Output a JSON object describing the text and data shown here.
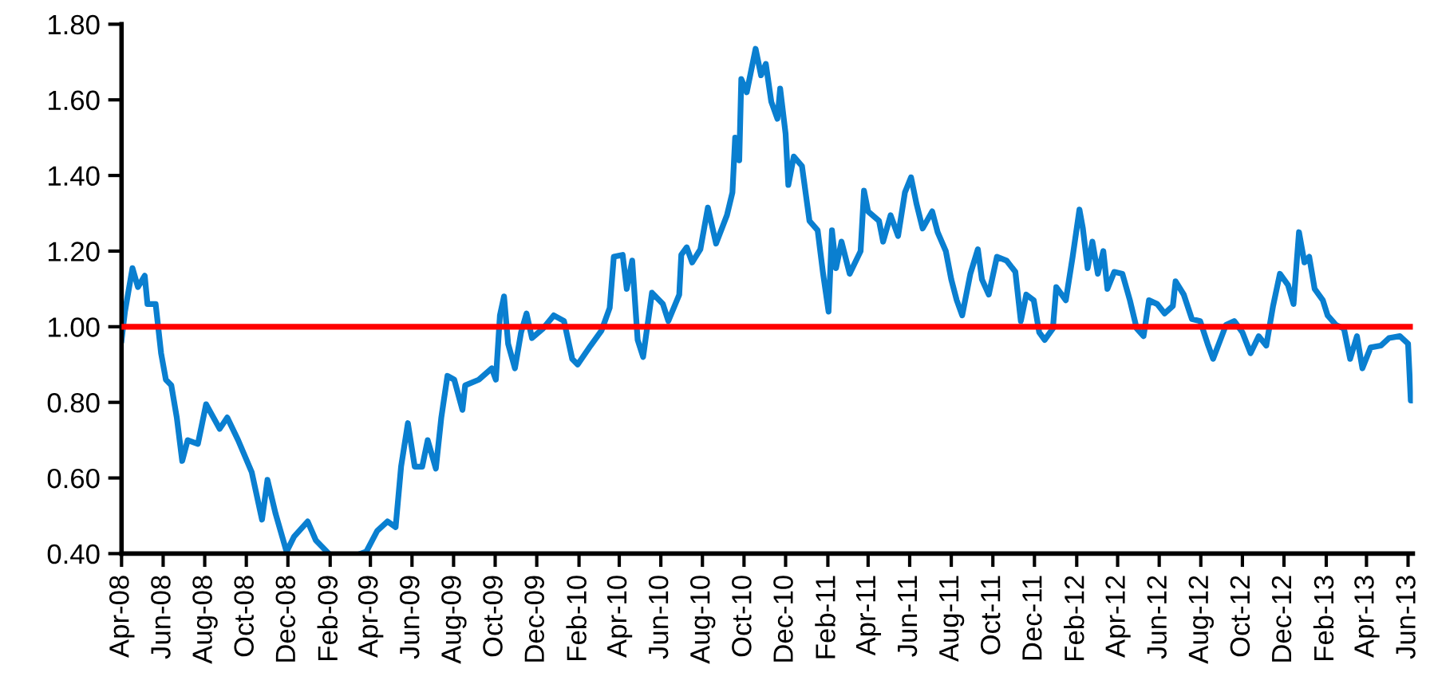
{
  "chart_data": {
    "type": "line",
    "xlim": [
      "2008-04-01",
      "2013-06-08"
    ],
    "ylim": [
      0.4,
      1.8
    ],
    "yticks": [
      {
        "value": 0.4,
        "label": "0.40"
      },
      {
        "value": 0.6,
        "label": "0.60"
      },
      {
        "value": 0.8,
        "label": "0.80"
      },
      {
        "value": 1.0,
        "label": "1.00"
      },
      {
        "value": 1.2,
        "label": "1.20"
      },
      {
        "value": 1.4,
        "label": "1.40"
      },
      {
        "value": 1.6,
        "label": "1.60"
      },
      {
        "value": 1.8,
        "label": "1.80"
      }
    ],
    "xticks": [
      {
        "value": "2008-04-01",
        "label": "Apr-08"
      },
      {
        "value": "2008-06-01",
        "label": "Jun-08"
      },
      {
        "value": "2008-08-01",
        "label": "Aug-08"
      },
      {
        "value": "2008-10-01",
        "label": "Oct-08"
      },
      {
        "value": "2008-12-01",
        "label": "Dec-08"
      },
      {
        "value": "2009-02-01",
        "label": "Feb-09"
      },
      {
        "value": "2009-04-01",
        "label": "Apr-09"
      },
      {
        "value": "2009-06-01",
        "label": "Jun-09"
      },
      {
        "value": "2009-08-01",
        "label": "Aug-09"
      },
      {
        "value": "2009-10-01",
        "label": "Oct-09"
      },
      {
        "value": "2009-12-01",
        "label": "Dec-09"
      },
      {
        "value": "2010-02-01",
        "label": "Feb-10"
      },
      {
        "value": "2010-04-01",
        "label": "Apr-10"
      },
      {
        "value": "2010-06-01",
        "label": "Jun-10"
      },
      {
        "value": "2010-08-01",
        "label": "Aug-10"
      },
      {
        "value": "2010-10-01",
        "label": "Oct-10"
      },
      {
        "value": "2010-12-01",
        "label": "Dec-10"
      },
      {
        "value": "2011-02-01",
        "label": "Feb-11"
      },
      {
        "value": "2011-04-01",
        "label": "Apr-11"
      },
      {
        "value": "2011-06-01",
        "label": "Jun-11"
      },
      {
        "value": "2011-08-01",
        "label": "Aug-11"
      },
      {
        "value": "2011-10-01",
        "label": "Oct-11"
      },
      {
        "value": "2011-12-01",
        "label": "Dec-11"
      },
      {
        "value": "2012-02-01",
        "label": "Feb-12"
      },
      {
        "value": "2012-04-01",
        "label": "Apr-12"
      },
      {
        "value": "2012-06-01",
        "label": "Jun-12"
      },
      {
        "value": "2012-08-01",
        "label": "Aug-12"
      },
      {
        "value": "2012-10-01",
        "label": "Oct-12"
      },
      {
        "value": "2012-12-01",
        "label": "Dec-12"
      },
      {
        "value": "2013-02-01",
        "label": "Feb-13"
      },
      {
        "value": "2013-04-01",
        "label": "Apr-13"
      },
      {
        "value": "2013-06-01",
        "label": "Jun-13"
      }
    ],
    "grid": false,
    "legend": false,
    "ref_lines": [
      {
        "axis": "y",
        "value": 1.0,
        "color": "#ff0000"
      }
    ],
    "series": [
      {
        "color": "#0a7fd0",
        "x": [
          "2008-04-01",
          "2008-04-06",
          "2008-04-17",
          "2008-04-25",
          "2008-05-05",
          "2008-05-09",
          "2008-05-21",
          "2008-05-29",
          "2008-06-05",
          "2008-06-13",
          "2008-06-21",
          "2008-06-29",
          "2008-07-07",
          "2008-07-22",
          "2008-08-03",
          "2008-08-23",
          "2008-09-03",
          "2008-09-19",
          "2008-10-09",
          "2008-10-24",
          "2008-11-01",
          "2008-11-13",
          "2008-11-29",
          "2008-12-10",
          "2008-12-30",
          "2009-01-11",
          "2009-01-30",
          "2009-02-23",
          "2009-03-18",
          "2009-03-26",
          "2009-04-11",
          "2009-04-26",
          "2009-05-08",
          "2009-05-16",
          "2009-05-26",
          "2009-06-05",
          "2009-06-16",
          "2009-06-24",
          "2009-07-06",
          "2009-07-14",
          "2009-07-23",
          "2009-08-02",
          "2009-08-14",
          "2009-08-18",
          "2009-09-07",
          "2009-09-26",
          "2009-10-02",
          "2009-10-08",
          "2009-10-14",
          "2009-10-20",
          "2009-10-30",
          "2009-11-08",
          "2009-11-16",
          "2009-11-24",
          "2009-12-10",
          "2009-12-26",
          "2010-01-10",
          "2010-01-22",
          "2010-01-30",
          "2010-02-18",
          "2010-03-06",
          "2010-03-18",
          "2010-03-24",
          "2010-04-06",
          "2010-04-12",
          "2010-04-20",
          "2010-04-28",
          "2010-05-06",
          "2010-05-19",
          "2010-06-04",
          "2010-06-12",
          "2010-06-28",
          "2010-07-01",
          "2010-07-09",
          "2010-07-17",
          "2010-07-29",
          "2010-08-09",
          "2010-08-21",
          "2010-09-06",
          "2010-09-14",
          "2010-09-18",
          "2010-09-24",
          "2010-09-27",
          "2010-10-05",
          "2010-10-18",
          "2010-10-26",
          "2010-11-02",
          "2010-11-10",
          "2010-11-19",
          "2010-11-23",
          "2010-12-01",
          "2010-12-05",
          "2010-12-13",
          "2010-12-25",
          "2011-01-05",
          "2011-01-17",
          "2011-01-25",
          "2011-02-02",
          "2011-02-07",
          "2011-02-13",
          "2011-02-21",
          "2011-03-05",
          "2011-03-21",
          "2011-03-26",
          "2011-04-01",
          "2011-04-17",
          "2011-04-23",
          "2011-05-04",
          "2011-05-15",
          "2011-05-25",
          "2011-06-03",
          "2011-06-11",
          "2011-06-20",
          "2011-07-04",
          "2011-07-12",
          "2011-07-24",
          "2011-08-01",
          "2011-08-09",
          "2011-08-17",
          "2011-08-29",
          "2011-09-09",
          "2011-09-15",
          "2011-09-25",
          "2011-10-07",
          "2011-10-21",
          "2011-11-03",
          "2011-11-11",
          "2011-11-19",
          "2011-11-30",
          "2011-12-08",
          "2011-12-16",
          "2011-12-28",
          "2012-01-02",
          "2012-01-16",
          "2012-01-26",
          "2012-02-05",
          "2012-02-10",
          "2012-02-17",
          "2012-02-24",
          "2012-03-03",
          "2012-03-11",
          "2012-03-17",
          "2012-03-27",
          "2012-04-08",
          "2012-04-19",
          "2012-04-29",
          "2012-05-09",
          "2012-05-17",
          "2012-05-29",
          "2012-06-09",
          "2012-06-21",
          "2012-06-25",
          "2012-07-07",
          "2012-07-19",
          "2012-07-31",
          "2012-08-11",
          "2012-08-19",
          "2012-09-07",
          "2012-09-19",
          "2012-10-01",
          "2012-10-13",
          "2012-10-25",
          "2012-11-05",
          "2012-11-15",
          "2012-11-25",
          "2012-12-07",
          "2012-12-15",
          "2012-12-23",
          "2012-12-31",
          "2013-01-07",
          "2013-01-15",
          "2013-01-27",
          "2013-02-03",
          "2013-02-15",
          "2013-02-27",
          "2013-03-08",
          "2013-03-18",
          "2013-03-26",
          "2013-04-07",
          "2013-04-22",
          "2013-05-04",
          "2013-05-20",
          "2013-06-01",
          "2013-06-05",
          "2013-06-08"
        ],
        "values": [
          0.965,
          1.04,
          1.155,
          1.105,
          1.135,
          1.06,
          1.06,
          0.93,
          0.86,
          0.845,
          0.76,
          0.645,
          0.7,
          0.69,
          0.795,
          0.73,
          0.76,
          0.7,
          0.615,
          0.49,
          0.595,
          0.505,
          0.405,
          0.445,
          0.485,
          0.435,
          0.4,
          null,
          0.4,
          0.405,
          0.46,
          0.485,
          0.47,
          0.63,
          0.745,
          0.63,
          0.63,
          0.7,
          0.625,
          0.76,
          0.87,
          0.86,
          0.78,
          0.845,
          0.86,
          0.89,
          0.86,
          1.03,
          1.08,
          0.955,
          0.89,
          0.985,
          1.035,
          0.97,
          0.995,
          1.03,
          1.015,
          0.915,
          0.9,
          0.95,
          0.99,
          1.05,
          1.185,
          1.19,
          1.1,
          1.175,
          0.965,
          0.92,
          1.09,
          1.06,
          1.015,
          1.085,
          1.19,
          1.21,
          1.17,
          1.205,
          1.315,
          1.22,
          1.295,
          1.355,
          1.5,
          1.44,
          1.655,
          1.62,
          1.735,
          1.665,
          1.695,
          1.595,
          1.55,
          1.63,
          1.51,
          1.375,
          1.45,
          1.425,
          1.28,
          1.255,
          1.14,
          1.04,
          1.255,
          1.155,
          1.225,
          1.14,
          1.2,
          1.36,
          1.305,
          1.28,
          1.225,
          1.295,
          1.24,
          1.355,
          1.395,
          1.325,
          1.26,
          1.305,
          1.25,
          1.2,
          1.125,
          1.07,
          1.03,
          1.14,
          1.205,
          1.125,
          1.085,
          1.185,
          1.175,
          1.145,
          1.015,
          1.085,
          1.07,
          0.985,
          0.965,
          0.995,
          1.105,
          1.07,
          1.185,
          1.31,
          1.26,
          1.155,
          1.225,
          1.14,
          1.2,
          1.1,
          1.145,
          1.14,
          1.07,
          0.995,
          0.975,
          1.07,
          1.06,
          1.035,
          1.055,
          1.12,
          1.085,
          1.02,
          1.015,
          0.955,
          0.915,
          1.005,
          1.015,
          0.985,
          0.93,
          0.975,
          0.95,
          1.055,
          1.14,
          1.11,
          1.06,
          1.25,
          1.17,
          1.185,
          1.1,
          1.07,
          1.03,
          1.005,
          0.995,
          0.915,
          0.975,
          0.89,
          0.945,
          0.95,
          0.97,
          0.975,
          0.955,
          0.805,
          0.805
        ]
      }
    ]
  }
}
